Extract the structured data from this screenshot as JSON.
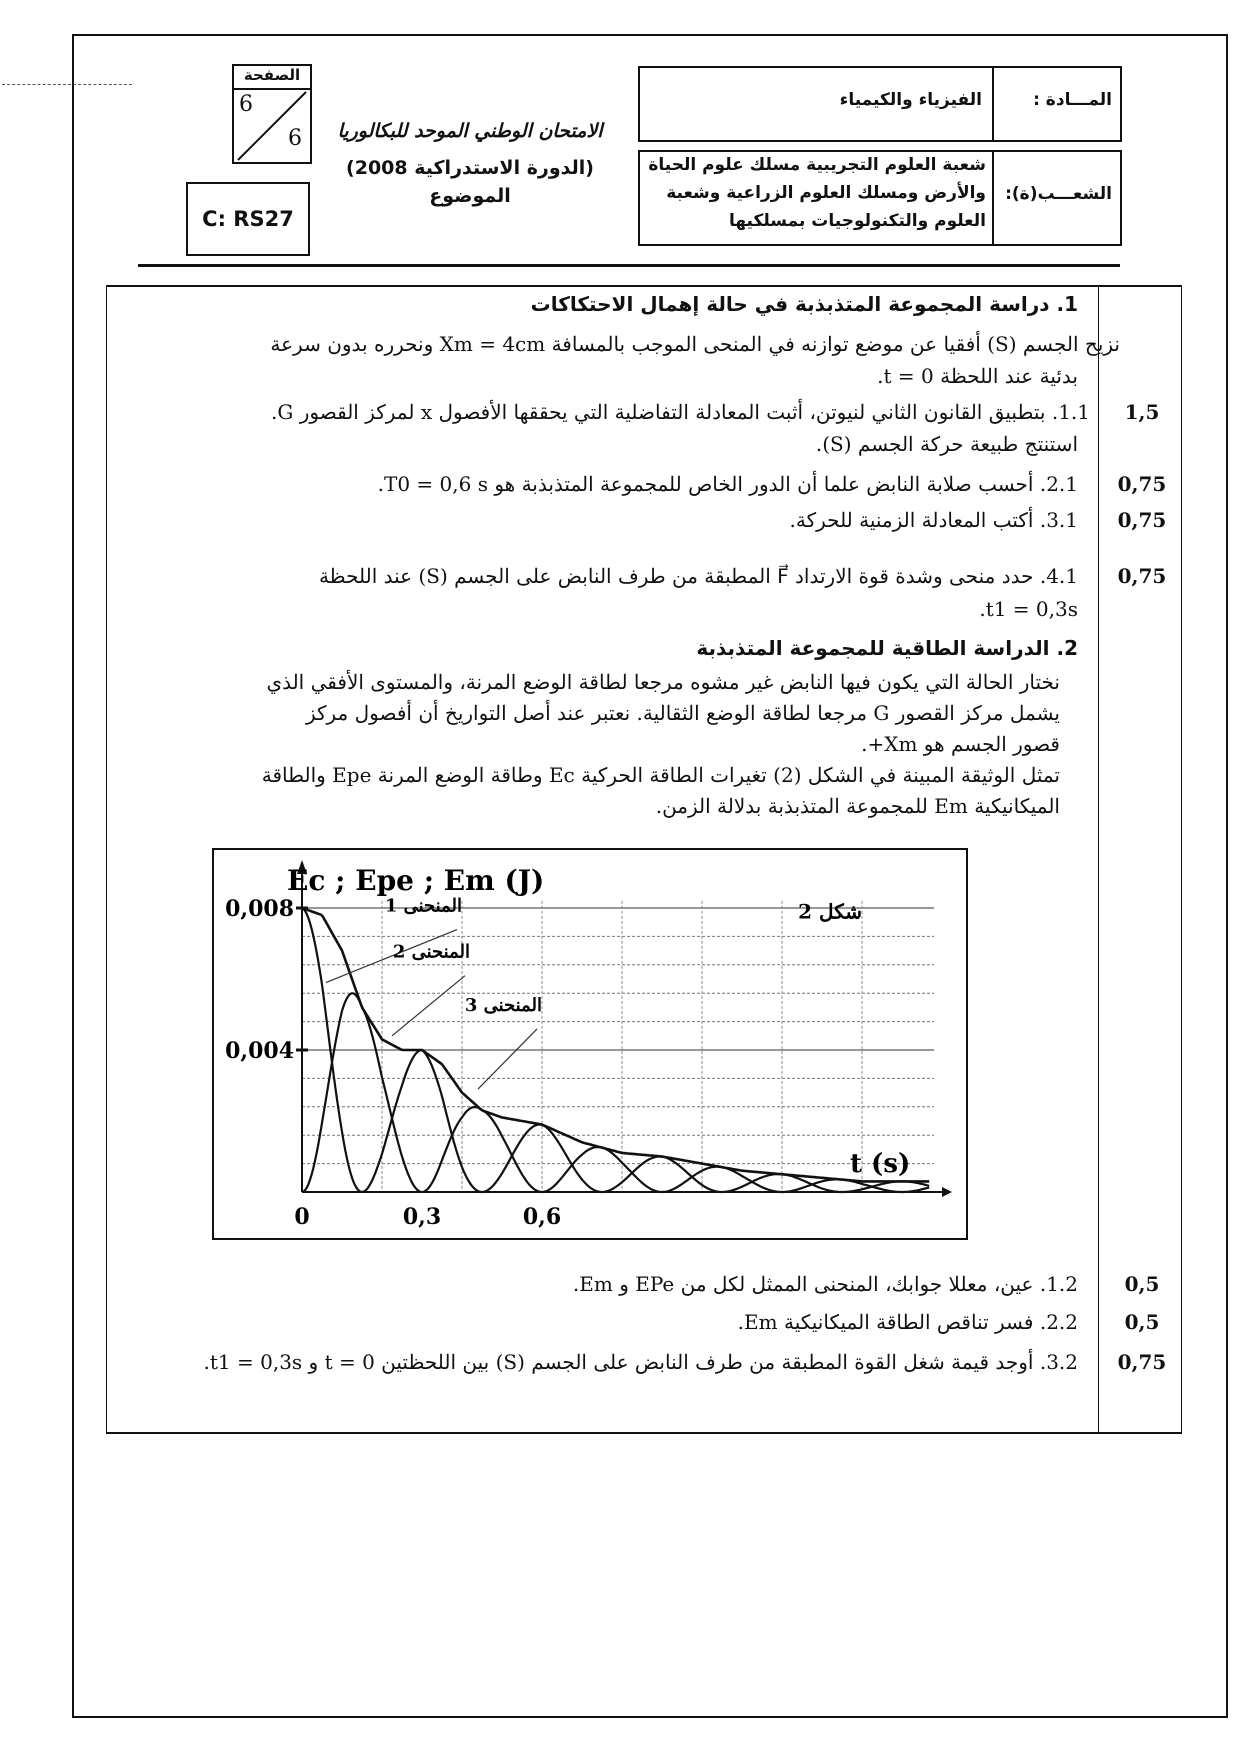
{
  "header": {
    "subject_label": "المـــادة :",
    "subject_value": "الفيزياء والكيمياء",
    "branch_label": "الشعـــب(ة):",
    "branch_lines": [
      "شعبة العلوم التجريبية مسلك علوم الحياة",
      "والأرض ومسلك العلوم الزراعية وشعبة",
      "العلوم والتكنولوجيات بمسلكيها"
    ],
    "exam_title": "الامتحان الوطني الموحد للبكالوريا",
    "session": "(الدورة الاستدراكية 2008)",
    "subject_word": "الموضوع",
    "page_label": "الصفحة",
    "page_current": "6",
    "page_total": "6",
    "code": "C: RS27"
  },
  "section1": {
    "heading": "1. دراسة المجموعة المتذبذبة في حالة إهمال الاحتكاكات",
    "intro": [
      "نزيح الجسم (S) أفقيا عن موضع توازنه في المنحى الموجب بالمسافة Xm = 4cm  ونحرره بدون سرعة",
      "بدئية عند اللحظة t = 0."
    ],
    "questions": [
      {
        "lines": [
          "1.1. بتطبيق القانون الثاني لنيوتن، أثبت المعادلة التفاضلية التي يحققها الأفصول x لمركز القصور G.",
          "استنتج طبيعة حركة الجسم (S)."
        ],
        "score": "1,5"
      },
      {
        "lines": [
          "2.1. أحسب صلابة النابض علما أن الدور الخاص للمجموعة المتذبذبة هو T0 = 0,6 s."
        ],
        "score": "0,75"
      },
      {
        "lines": [
          "3.1. أكتب المعادلة الزمنية للحركة."
        ],
        "score": "0,75"
      },
      {
        "lines": [
          "4.1. حدد منحى وشدة قوة الارتداد F⃗ المطبقة من طرف النابض على الجسم (S) عند اللحظة",
          "t1 = 0,3s."
        ],
        "score": "0,75"
      }
    ]
  },
  "section2": {
    "heading": "2. الدراسة الطاقية للمجموعة المتذبذبة",
    "intro": [
      "نختار الحالة التي يكون فيها النابض غير مشوه مرجعا لطاقة الوضع المرنة، والمستوى الأفقي الذي",
      "يشمل مركز القصور G مرجعا لطاقة الوضع الثقالية. نعتبر عند أصل التواريخ أن أفصول مركز",
      "قصور الجسم هو Xm+.",
      "تمثل الوثيقة  المبينة في الشكل (2) تغيرات الطاقة الحركية Ec وطاقة الوضع المرنة Epe والطاقة",
      "الميكانيكية Em للمجموعة المتذبذبة بدلالة الزمن."
    ],
    "questions": [
      {
        "lines": [
          "1.2.  عين، معللا جوابك، المنحنى الممثل لكل من EPe و Em."
        ],
        "score": "0,5"
      },
      {
        "lines": [
          "2.2. فسر تناقص الطاقة الميكانيكية Em."
        ],
        "score": "0,5"
      },
      {
        "lines": [
          "3.2. أوجد قيمة شغل القوة المطبقة من طرف النابض على الجسم (S) بين اللحظتين t = 0 و t1 = 0,3s."
        ],
        "score": "0,75"
      }
    ]
  },
  "chart_data": {
    "type": "line",
    "title": "شكل 2",
    "ylabel": "Ec ; Epe ; Em (J)",
    "xlabel": "t (s)",
    "xlim": [
      0,
      1.6
    ],
    "ylim": [
      0,
      0.008
    ],
    "x_ticks": [
      "0",
      "0,3",
      "0,6"
    ],
    "x_tick_values": [
      0,
      0.3,
      0.6
    ],
    "y_ticks": [
      "0,008",
      "0,004"
    ],
    "y_tick_values": [
      0.008,
      0.004
    ],
    "grid": true,
    "curve_labels": [
      "المنحنى 1",
      "المنحنى 2",
      "المنحنى 3"
    ],
    "em": {
      "t": [
        0,
        0.05,
        0.1,
        0.15,
        0.2,
        0.25,
        0.3,
        0.35,
        0.4,
        0.45,
        0.5,
        0.55,
        0.6,
        0.7,
        0.8,
        0.9,
        1.0,
        1.1,
        1.2,
        1.3,
        1.4,
        1.57
      ],
      "E": [
        0.008,
        0.0078,
        0.0068,
        0.0052,
        0.0043,
        0.004,
        0.004,
        0.0036,
        0.0028,
        0.0023,
        0.0021,
        0.002,
        0.0019,
        0.0014,
        0.0011,
        0.001,
        0.0008,
        0.0006,
        0.0005,
        0.0004,
        0.0003,
        0.0003
      ]
    },
    "energy_period_s": 0.3
  }
}
